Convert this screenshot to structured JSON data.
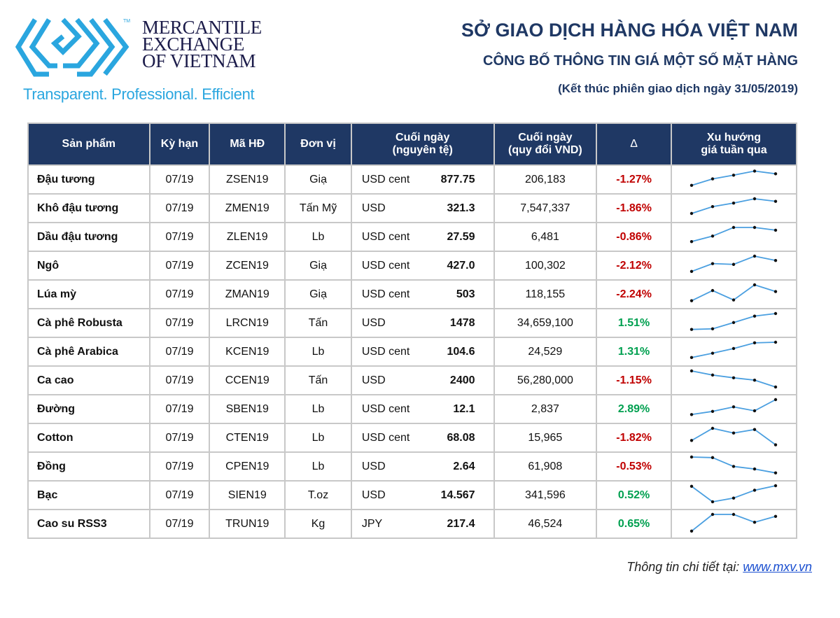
{
  "logo": {
    "line1": "MERCANTILE",
    "line2": "EXCHANGE",
    "line3": "OF VIETNAM",
    "tm": "TM",
    "tagline": "Transparent. Professional. Efficient"
  },
  "header": {
    "title": "SỞ GIAO DỊCH HÀNG HÓA VIỆT NAM",
    "subtitle": "CÔNG BỐ THÔNG TIN GIÁ MỘT SỐ MẶT HÀNG",
    "session": "(Kết thúc phiên giao dịch ngày 31/05/2019)"
  },
  "columns": {
    "product": "Sản phẩm",
    "term": "Kỳ hạn",
    "code": "Mã HĐ",
    "unit": "Đơn vị",
    "close_orig_1": "Cuối ngày",
    "close_orig_2": "(nguyên tệ)",
    "close_vnd_1": "Cuối ngày",
    "close_vnd_2": "(quy đổi VND)",
    "delta": "Δ",
    "trend_1": "Xu hướng",
    "trend_2": "giá tuần qua"
  },
  "colors": {
    "header_bg": "#1f3864",
    "negative": "#c00000",
    "positive": "#00a050",
    "sparkline": "#4a9fe0"
  },
  "rows": [
    {
      "product": "Đậu tương",
      "term": "07/19",
      "code": "ZSEN19",
      "unit": "Giạ",
      "currency": "USD cent",
      "close": "877.75",
      "vnd": "206,183",
      "delta": "-1.27%",
      "trend": [
        0.22,
        0.55,
        0.74,
        0.95,
        0.81
      ]
    },
    {
      "product": "Khô đậu tương",
      "term": "07/19",
      "code": "ZMEN19",
      "unit": "Tấn Mỹ",
      "currency": "USD",
      "close": "321.3",
      "vnd": "7,547,337",
      "delta": "-1.86%",
      "trend": [
        0.25,
        0.6,
        0.78,
        1.0,
        0.87
      ]
    },
    {
      "product": "Dầu đậu tương",
      "term": "07/19",
      "code": "ZLEN19",
      "unit": "Lb",
      "currency": "USD cent",
      "close": "27.59",
      "vnd": "6,481",
      "delta": "-0.86%",
      "trend": [
        0.28,
        0.56,
        1.0,
        1.0,
        0.86
      ]
    },
    {
      "product": "Ngô",
      "term": "07/19",
      "code": "ZCEN19",
      "unit": "Giạ",
      "currency": "USD cent",
      "close": "427.0",
      "vnd": "100,302",
      "delta": "-2.12%",
      "trend": [
        0.22,
        0.62,
        0.58,
        1.0,
        0.78
      ]
    },
    {
      "product": "Lúa mỳ",
      "term": "07/19",
      "code": "ZMAN19",
      "unit": "Giạ",
      "currency": "USD cent",
      "close": "503",
      "vnd": "118,155",
      "delta": "-2.24%",
      "trend": [
        0.19,
        0.71,
        0.23,
        1.0,
        0.66
      ]
    },
    {
      "product": "Cà phê Robusta",
      "term": "07/19",
      "code": "LRCN19",
      "unit": "Tấn",
      "currency": "USD",
      "close": "1478",
      "vnd": "34,659,100",
      "delta": "1.51%",
      "trend": [
        0.19,
        0.22,
        0.54,
        0.87,
        1.0
      ]
    },
    {
      "product": "Cà phê Arabica",
      "term": "07/19",
      "code": "KCEN19",
      "unit": "Lb",
      "currency": "USD cent",
      "close": "104.6",
      "vnd": "24,529",
      "delta": "1.31%",
      "trend": [
        0.22,
        0.44,
        0.68,
        0.97,
        1.0
      ]
    },
    {
      "product": "Ca cao",
      "term": "07/19",
      "code": "CCEN19",
      "unit": "Tấn",
      "currency": "USD",
      "close": "2400",
      "vnd": "56,280,000",
      "delta": "-1.15%",
      "trend": [
        1.0,
        0.79,
        0.65,
        0.53,
        0.18
      ]
    },
    {
      "product": "Đường",
      "term": "07/19",
      "code": "SBEN19",
      "unit": "Lb",
      "currency": "USD cent",
      "close": "12.1",
      "vnd": "2,837",
      "delta": "2.89%",
      "trend": [
        0.24,
        0.4,
        0.63,
        0.43,
        1.0
      ]
    },
    {
      "product": "Cotton",
      "term": "07/19",
      "code": "CTEN19",
      "unit": "Lb",
      "currency": "USD cent",
      "close": "68.08",
      "vnd": "15,965",
      "delta": "-1.82%",
      "trend": [
        0.38,
        1.0,
        0.76,
        0.94,
        0.16
      ]
    },
    {
      "product": "Đồng",
      "term": "07/19",
      "code": "CPEN19",
      "unit": "Lb",
      "currency": "USD",
      "close": "2.64",
      "vnd": "61,908",
      "delta": "-0.53%",
      "trend": [
        1.0,
        0.97,
        0.52,
        0.39,
        0.19
      ]
    },
    {
      "product": "Bạc",
      "term": "07/19",
      "code": "SIEN19",
      "unit": "T.oz",
      "currency": "USD",
      "close": "14.567",
      "vnd": "341,596",
      "delta": "0.52%",
      "trend": [
        0.97,
        0.18,
        0.37,
        0.77,
        1.0
      ]
    },
    {
      "product": "Cao su RSS3",
      "term": "07/19",
      "code": "TRUN19",
      "unit": "Kg",
      "currency": "JPY",
      "close": "217.4",
      "vnd": "46,524",
      "delta": "0.65%",
      "trend": [
        0.15,
        1.0,
        1.0,
        0.6,
        0.9
      ]
    }
  ],
  "footer": {
    "label": "Thông tin chi tiết tại:",
    "link": "www.mxv.vn"
  }
}
